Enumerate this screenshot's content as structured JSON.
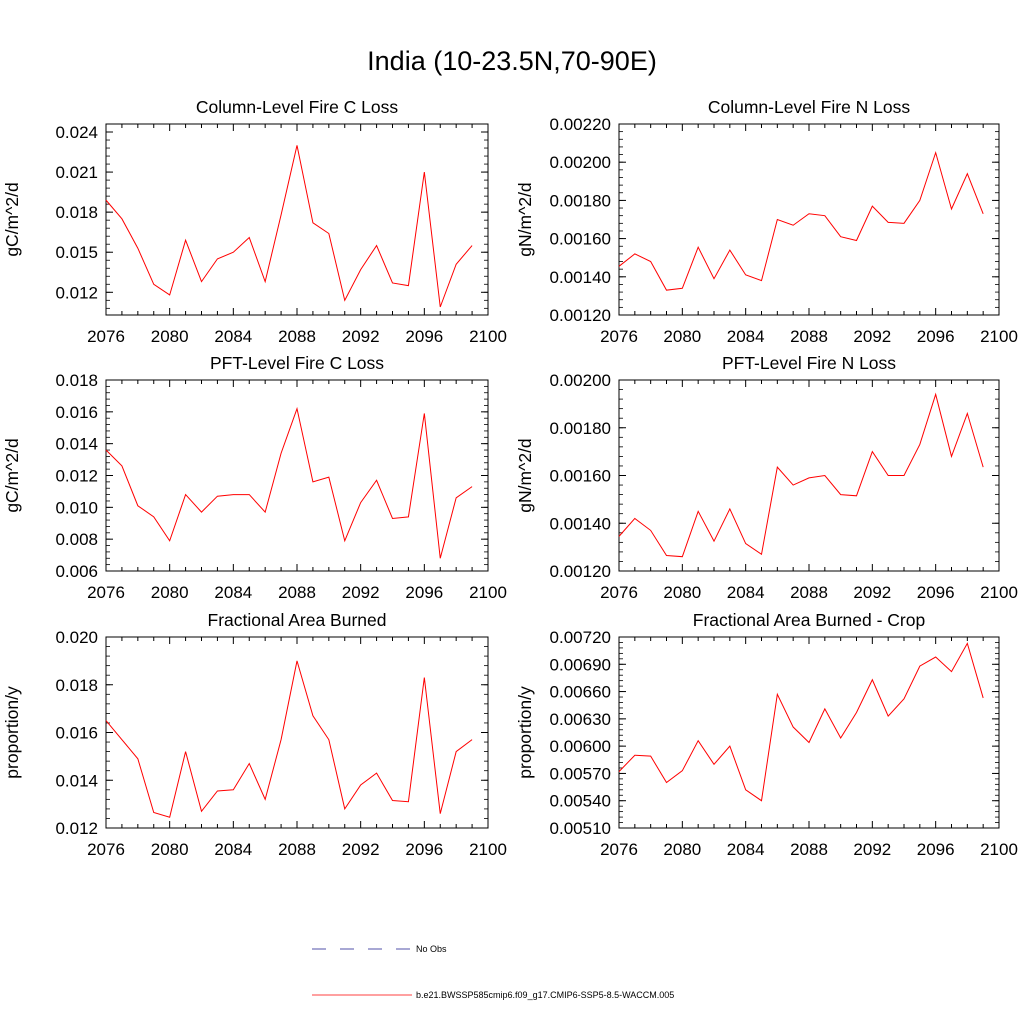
{
  "title": "India (10-23.5N,70-90E)",
  "legend": {
    "items": [
      {
        "label": "No Obs",
        "color": "#1a1a8c",
        "style": "dashed"
      },
      {
        "label": "b.e21.BWSSP585cmip6.f09_g17.CMIP6-SSP5-8.5-WACCM.005",
        "color": "#ff0000",
        "style": "solid"
      }
    ]
  },
  "chart_data": [
    {
      "type": "line",
      "title": "Column-Level Fire C Loss",
      "ylabel": "gC/m^2/d",
      "xlim": [
        2076,
        2100
      ],
      "ylim": [
        0.0103,
        0.0246
      ],
      "xticks": [
        "2076",
        "2080",
        "2084",
        "2088",
        "2092",
        "2096",
        "2100"
      ],
      "yticks": [
        "0.012",
        "0.015",
        "0.018",
        "0.021",
        "0.024"
      ],
      "ytick_values": [
        0.012,
        0.015,
        0.018,
        0.021,
        0.024
      ],
      "series": [
        {
          "color": "#ff0000",
          "x": [
            2076,
            2077,
            2078,
            2079,
            2080,
            2081,
            2082,
            2083,
            2084,
            2085,
            2086,
            2087,
            2088,
            2089,
            2090,
            2091,
            2092,
            2093,
            2094,
            2095,
            2096,
            2097,
            2098,
            2099
          ],
          "values": [
            0.0189,
            0.0175,
            0.0153,
            0.0126,
            0.0118,
            0.0159,
            0.0128,
            0.0145,
            0.015,
            0.0161,
            0.0128,
            0.0178,
            0.023,
            0.0172,
            0.0164,
            0.0114,
            0.0137,
            0.0155,
            0.0127,
            0.0125,
            0.021,
            0.0109,
            0.0141,
            0.0155
          ]
        }
      ]
    },
    {
      "type": "line",
      "title": "Column-Level Fire N Loss",
      "ylabel": "gN/m^2/d",
      "xlim": [
        2076,
        2100
      ],
      "ylim": [
        0.0012,
        0.0022
      ],
      "xticks": [
        "2076",
        "2080",
        "2084",
        "2088",
        "2092",
        "2096",
        "2100"
      ],
      "yticks": [
        "0.00120",
        "0.00140",
        "0.00160",
        "0.00180",
        "0.00200",
        "0.00220"
      ],
      "ytick_values": [
        0.0012,
        0.0014,
        0.0016,
        0.0018,
        0.002,
        0.0022
      ],
      "series": [
        {
          "color": "#ff0000",
          "x": [
            2076,
            2077,
            2078,
            2079,
            2080,
            2081,
            2082,
            2083,
            2084,
            2085,
            2086,
            2087,
            2088,
            2089,
            2090,
            2091,
            2092,
            2093,
            2094,
            2095,
            2096,
            2097,
            2098,
            2099
          ],
          "values": [
            0.001455,
            0.00152,
            0.00148,
            0.00133,
            0.00134,
            0.001555,
            0.00139,
            0.00154,
            0.00141,
            0.00138,
            0.0017,
            0.00167,
            0.00173,
            0.00172,
            0.00161,
            0.00159,
            0.00177,
            0.001685,
            0.00168,
            0.0018,
            0.00205,
            0.001755,
            0.00194,
            0.00173
          ]
        }
      ]
    },
    {
      "type": "line",
      "title": "PFT-Level Fire C Loss",
      "ylabel": "gC/m^2/d",
      "xlim": [
        2076,
        2100
      ],
      "ylim": [
        0.006,
        0.018
      ],
      "xticks": [
        "2076",
        "2080",
        "2084",
        "2088",
        "2092",
        "2096",
        "2100"
      ],
      "yticks": [
        "0.006",
        "0.008",
        "0.010",
        "0.012",
        "0.014",
        "0.016",
        "0.018"
      ],
      "ytick_values": [
        0.006,
        0.008,
        0.01,
        0.012,
        0.014,
        0.016,
        0.018
      ],
      "series": [
        {
          "color": "#ff0000",
          "x": [
            2076,
            2077,
            2078,
            2079,
            2080,
            2081,
            2082,
            2083,
            2084,
            2085,
            2086,
            2087,
            2088,
            2089,
            2090,
            2091,
            2092,
            2093,
            2094,
            2095,
            2096,
            2097,
            2098,
            2099
          ],
          "values": [
            0.0136,
            0.0126,
            0.0101,
            0.0094,
            0.0079,
            0.0108,
            0.0097,
            0.0107,
            0.0108,
            0.0108,
            0.0097,
            0.0134,
            0.0162,
            0.0116,
            0.0119,
            0.0079,
            0.0103,
            0.0117,
            0.0093,
            0.0094,
            0.0159,
            0.0068,
            0.0106,
            0.0113
          ]
        }
      ]
    },
    {
      "type": "line",
      "title": "PFT-Level Fire N Loss",
      "ylabel": "gN/m^2/d",
      "xlim": [
        2076,
        2100
      ],
      "ylim": [
        0.0012,
        0.002
      ],
      "xticks": [
        "2076",
        "2080",
        "2084",
        "2088",
        "2092",
        "2096",
        "2100"
      ],
      "yticks": [
        "0.00120",
        "0.00140",
        "0.00160",
        "0.00180",
        "0.00200"
      ],
      "ytick_values": [
        0.0012,
        0.0014,
        0.0016,
        0.0018,
        0.002
      ],
      "series": [
        {
          "color": "#ff0000",
          "x": [
            2076,
            2077,
            2078,
            2079,
            2080,
            2081,
            2082,
            2083,
            2084,
            2085,
            2086,
            2087,
            2088,
            2089,
            2090,
            2091,
            2092,
            2093,
            2094,
            2095,
            2096,
            2097,
            2098,
            2099
          ],
          "values": [
            0.001345,
            0.00142,
            0.00137,
            0.001265,
            0.00126,
            0.00145,
            0.001325,
            0.00146,
            0.001315,
            0.00127,
            0.001635,
            0.00156,
            0.00159,
            0.0016,
            0.00152,
            0.001515,
            0.0017,
            0.0016,
            0.0016,
            0.00173,
            0.00194,
            0.00168,
            0.00186,
            0.001635
          ]
        }
      ]
    },
    {
      "type": "line",
      "title": "Fractional Area Burned",
      "ylabel": "proportion/y",
      "xlim": [
        2076,
        2100
      ],
      "ylim": [
        0.012,
        0.02
      ],
      "xticks": [
        "2076",
        "2080",
        "2084",
        "2088",
        "2092",
        "2096",
        "2100"
      ],
      "yticks": [
        "0.012",
        "0.014",
        "0.016",
        "0.018",
        "0.020"
      ],
      "ytick_values": [
        0.012,
        0.014,
        0.016,
        0.018,
        0.02
      ],
      "series": [
        {
          "color": "#ff0000",
          "x": [
            2076,
            2077,
            2078,
            2079,
            2080,
            2081,
            2082,
            2083,
            2084,
            2085,
            2086,
            2087,
            2088,
            2089,
            2090,
            2091,
            2092,
            2093,
            2094,
            2095,
            2096,
            2097,
            2098,
            2099
          ],
          "values": [
            0.0165,
            0.0157,
            0.0149,
            0.01265,
            0.01245,
            0.0152,
            0.0127,
            0.01355,
            0.0136,
            0.0147,
            0.0132,
            0.0157,
            0.019,
            0.0167,
            0.0157,
            0.0128,
            0.0138,
            0.0143,
            0.01315,
            0.0131,
            0.0183,
            0.0126,
            0.0152,
            0.0157
          ]
        }
      ]
    },
    {
      "type": "line",
      "title": "Fractional Area Burned - Crop",
      "ylabel": "proportion/y",
      "xlim": [
        2076,
        2100
      ],
      "ylim": [
        0.0051,
        0.0072
      ],
      "xticks": [
        "2076",
        "2080",
        "2084",
        "2088",
        "2092",
        "2096",
        "2100"
      ],
      "yticks": [
        "0.00510",
        "0.00540",
        "0.00570",
        "0.00600",
        "0.00630",
        "0.00660",
        "0.00690",
        "0.00720"
      ],
      "ytick_values": [
        0.0051,
        0.0054,
        0.0057,
        0.006,
        0.0063,
        0.0066,
        0.0069,
        0.0072
      ],
      "series": [
        {
          "color": "#ff0000",
          "x": [
            2076,
            2077,
            2078,
            2079,
            2080,
            2081,
            2082,
            2083,
            2084,
            2085,
            2086,
            2087,
            2088,
            2089,
            2090,
            2091,
            2092,
            2093,
            2094,
            2095,
            2096,
            2097,
            2098,
            2099
          ],
          "values": [
            0.00572,
            0.0059,
            0.00589,
            0.0056,
            0.00573,
            0.00606,
            0.0058,
            0.006,
            0.00552,
            0.0054,
            0.00657,
            0.00621,
            0.00604,
            0.00641,
            0.00609,
            0.00637,
            0.00673,
            0.00633,
            0.00652,
            0.00688,
            0.00698,
            0.00682,
            0.00713,
            0.00653
          ]
        }
      ]
    }
  ]
}
